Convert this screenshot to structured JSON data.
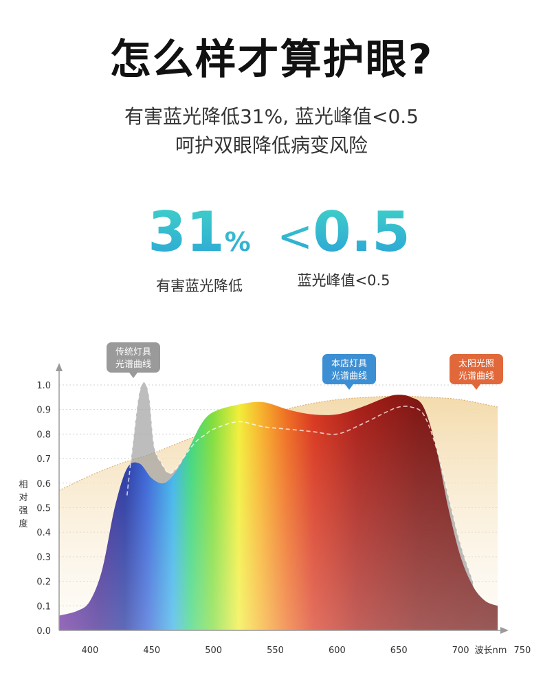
{
  "header": {
    "title": "怎么样才算护眼?",
    "subtitle_line1": "有害蓝光降低31%, 蓝光峰值<0.5",
    "subtitle_line2": "呵护双眼降低病变风险"
  },
  "stats": [
    {
      "value": "31",
      "unit": "%",
      "caption": "有害蓝光降低"
    },
    {
      "prefix": "<",
      "value": "0.5",
      "caption": "蓝光峰值<0.5"
    }
  ],
  "chart_data": {
    "type": "area",
    "xlabel": "波长nm",
    "ylabel": "相对强度",
    "xlim": [
      375,
      730
    ],
    "ylim": [
      0,
      1.0
    ],
    "x_ticks": [
      400,
      450,
      500,
      550,
      600,
      650,
      700,
      750
    ],
    "y_ticks": [
      "0.0",
      "0.1",
      "0.2",
      "0.3",
      "0.4",
      "0.5",
      "0.6",
      "0.7",
      "0.8",
      "0.9",
      "1.0"
    ],
    "grid": true,
    "series": [
      {
        "name": "本店灯具光谱曲线",
        "bubble": [
          "本店灯具",
          "光谱曲线"
        ],
        "color": "#3d8fd4",
        "x": [
          375,
          390,
          400,
          410,
          420,
          430,
          440,
          450,
          460,
          470,
          480,
          490,
          500,
          520,
          540,
          560,
          580,
          600,
          620,
          640,
          650,
          660,
          670,
          680,
          690,
          700,
          710,
          720,
          730
        ],
        "y": [
          0.06,
          0.08,
          0.12,
          0.25,
          0.5,
          0.66,
          0.68,
          0.62,
          0.6,
          0.65,
          0.74,
          0.84,
          0.89,
          0.92,
          0.93,
          0.9,
          0.88,
          0.88,
          0.91,
          0.95,
          0.96,
          0.95,
          0.91,
          0.75,
          0.5,
          0.3,
          0.18,
          0.12,
          0.1
        ]
      },
      {
        "name": "传统灯具光谱曲线",
        "bubble": [
          "传统灯具",
          "光谱曲线"
        ],
        "color": "#9a9a9a",
        "x": [
          430,
          436,
          440,
          444,
          448,
          452,
          458,
          464,
          470,
          478,
          486,
          494,
          500,
          520,
          540,
          560,
          580,
          600,
          620,
          640,
          650,
          660,
          670,
          680,
          690,
          700,
          710
        ],
        "y": [
          0.55,
          0.82,
          0.97,
          1.01,
          0.95,
          0.75,
          0.68,
          0.64,
          0.66,
          0.72,
          0.77,
          0.8,
          0.82,
          0.85,
          0.83,
          0.82,
          0.81,
          0.8,
          0.84,
          0.89,
          0.91,
          0.91,
          0.88,
          0.75,
          0.55,
          0.35,
          0.2
        ]
      },
      {
        "name": "太阳光照光谱曲线",
        "bubble": [
          "太阳光照",
          "光谱曲线"
        ],
        "color": "#e0683a",
        "x": [
          375,
          400,
          425,
          450,
          475,
          500,
          525,
          550,
          575,
          600,
          625,
          650,
          675,
          700,
          730
        ],
        "y": [
          0.57,
          0.63,
          0.68,
          0.72,
          0.77,
          0.82,
          0.86,
          0.89,
          0.92,
          0.94,
          0.95,
          0.955,
          0.95,
          0.94,
          0.91
        ]
      }
    ]
  }
}
